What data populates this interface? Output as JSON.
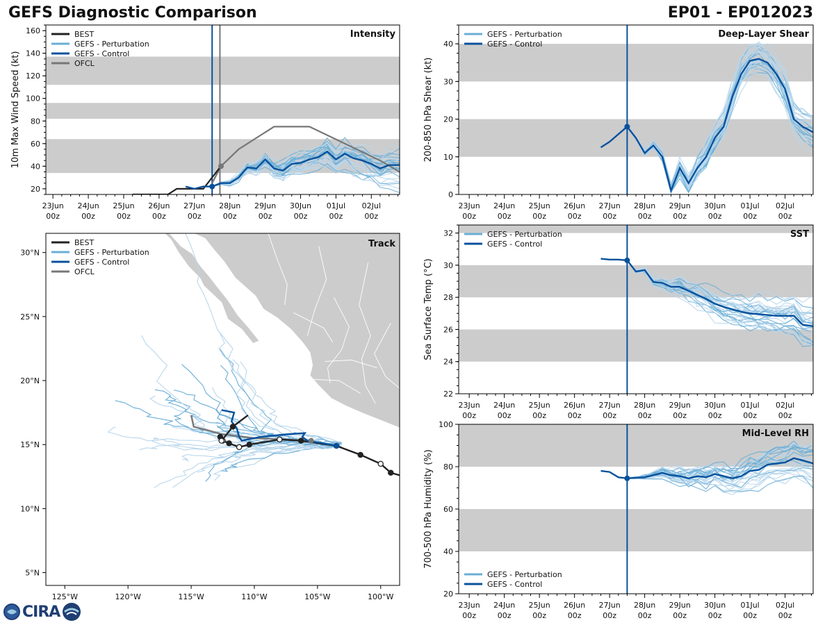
{
  "title": "GEFS Diagnostic Comparison",
  "storm_id": "EP01 - EP012023",
  "logo_text": "CIRA",
  "colors": {
    "best": "#222222",
    "perturbation": "#6aaed6",
    "control": "#08519c",
    "ofcl": "#777777",
    "band": "#cccccc",
    "land": "#cccccc",
    "land_border": "#ffffff"
  },
  "time_ticks": [
    "23Jun\n00z",
    "24Jun\n00z",
    "25Jun\n00z",
    "26Jun\n00z",
    "27Jun\n00z",
    "28Jun\n00z",
    "29Jun\n00z",
    "30Jun\n00z",
    "01Jul\n00z",
    "02Jul\n00z"
  ],
  "chart_data": [
    {
      "id": "intensity",
      "type": "line",
      "panel_label": "Intensity",
      "ylabel": "10m Max Wind Speed (kt)",
      "ylim": [
        15,
        165
      ],
      "yticks": [
        20,
        40,
        60,
        80,
        100,
        120,
        140,
        160
      ],
      "xlim_days": [
        -0.2,
        9.8
      ],
      "bands": [
        [
          34,
          64
        ],
        [
          82,
          96
        ],
        [
          112,
          137
        ]
      ],
      "init_day": 4.5,
      "ofcl_marker_day": 4.72,
      "legend": [
        "BEST",
        "GEFS - Perturbation",
        "GEFS - Control",
        "OFCL"
      ],
      "series": [
        {
          "name": "BEST",
          "x": [
            2.25,
            3.25,
            3.5,
            4.0,
            4.25,
            4.5,
            4.75
          ],
          "y": [
            15,
            15,
            20,
            20,
            20,
            30,
            40
          ]
        },
        {
          "name": "GEFS - Control",
          "x": [
            3.75,
            4.0,
            4.25,
            4.5,
            4.75,
            5.0,
            5.25,
            5.5,
            5.75,
            6.0,
            6.25,
            6.5,
            6.75,
            7.0,
            7.25,
            7.5,
            7.75,
            8.0,
            8.25,
            8.5,
            8.75,
            9.0,
            9.25,
            9.5,
            9.8
          ],
          "y": [
            22,
            20,
            22,
            22,
            25,
            25,
            30,
            39,
            38,
            46,
            38,
            36,
            42,
            43,
            46,
            48,
            53,
            46,
            51,
            47,
            45,
            42,
            38,
            41,
            41
          ]
        },
        {
          "name": "OFCL",
          "x": [
            4.5,
            4.75,
            5.25,
            6.25,
            7.25,
            8.25,
            9.25,
            9.8
          ],
          "y": [
            25,
            40,
            55,
            75,
            75,
            60,
            45,
            35
          ]
        }
      ]
    },
    {
      "id": "shear",
      "type": "line",
      "panel_label": "Deep-Layer Shear",
      "ylabel": "200-850 hPa Shear (kt)",
      "ylim": [
        0,
        45
      ],
      "yticks": [
        0,
        10,
        20,
        30,
        40
      ],
      "xlim_days": [
        -0.3,
        9.8
      ],
      "bands": [
        [
          10,
          20
        ],
        [
          30,
          40
        ]
      ],
      "init_day": 4.5,
      "legend": [
        "GEFS - Perturbation",
        "GEFS - Control"
      ],
      "series": [
        {
          "name": "GEFS - Control",
          "x": [
            3.75,
            4.0,
            4.25,
            4.5,
            4.75,
            5.0,
            5.25,
            5.5,
            5.75,
            6.0,
            6.25,
            6.5,
            6.75,
            7.0,
            7.25,
            7.5,
            7.75,
            8.0,
            8.25,
            8.5,
            8.75,
            9.0,
            9.25,
            9.5,
            9.8
          ],
          "y": [
            12.5,
            14,
            16,
            18,
            15,
            11,
            13,
            10,
            1,
            7,
            3,
            7,
            10,
            15,
            18,
            26,
            32,
            35.5,
            36,
            35,
            32,
            28,
            20,
            18,
            16.5
          ]
        }
      ]
    },
    {
      "id": "sst",
      "type": "line",
      "panel_label": "SST",
      "ylabel": "Sea Surface Temp (°C)",
      "ylim": [
        22,
        32.5
      ],
      "yticks": [
        22,
        24,
        26,
        28,
        30,
        32
      ],
      "xlim_days": [
        -0.3,
        9.8
      ],
      "bands": [
        [
          24,
          26
        ],
        [
          28,
          30
        ],
        [
          32,
          32.5
        ]
      ],
      "init_day": 4.5,
      "legend": [
        "GEFS - Perturbation",
        "GEFS - Control"
      ],
      "series": [
        {
          "name": "GEFS - Control",
          "x": [
            3.75,
            4.0,
            4.25,
            4.5,
            4.75,
            5.0,
            5.25,
            5.5,
            5.75,
            6.0,
            6.25,
            6.5,
            6.75,
            7.0,
            7.25,
            7.5,
            7.75,
            8.0,
            8.25,
            8.5,
            8.75,
            9.0,
            9.25,
            9.5,
            9.8
          ],
          "y": [
            30.4,
            30.35,
            30.35,
            30.3,
            29.6,
            29.7,
            28.95,
            28.9,
            28.65,
            28.65,
            28.4,
            28.15,
            27.9,
            27.6,
            27.4,
            27.25,
            27.1,
            27.0,
            26.95,
            26.9,
            26.85,
            26.85,
            26.85,
            26.3,
            26.2
          ]
        }
      ]
    },
    {
      "id": "rh",
      "type": "line",
      "panel_label": "Mid-Level RH",
      "ylabel": "700-500 hPa Humidity (%)",
      "ylim": [
        20,
        100
      ],
      "yticks": [
        20,
        40,
        60,
        80,
        100
      ],
      "xlim_days": [
        -0.3,
        9.8
      ],
      "bands": [
        [
          40,
          60
        ],
        [
          80,
          100
        ]
      ],
      "init_day": 4.5,
      "legend": [
        "GEFS - Perturbation",
        "GEFS - Control"
      ],
      "series": [
        {
          "name": "GEFS - Control",
          "x": [
            3.75,
            4.0,
            4.25,
            4.5,
            4.75,
            5.0,
            5.25,
            5.5,
            5.75,
            6.0,
            6.25,
            6.5,
            6.75,
            7.0,
            7.25,
            7.5,
            7.75,
            8.0,
            8.25,
            8.5,
            8.75,
            9.0,
            9.25,
            9.5,
            9.8
          ],
          "y": [
            78,
            77.5,
            75,
            74.5,
            74.8,
            75,
            76,
            77,
            76,
            75.5,
            74.5,
            75.5,
            75,
            76.5,
            75.5,
            74.5,
            75.5,
            78,
            78.5,
            81,
            81.5,
            82,
            84,
            83,
            81.5
          ]
        }
      ]
    },
    {
      "id": "track",
      "type": "scatter",
      "panel_label": "Track",
      "xlim": [
        -126.5,
        -98.5
      ],
      "ylim": [
        4,
        31.5
      ],
      "xticks": [
        "125°W",
        "120°W",
        "115°W",
        "110°W",
        "105°W",
        "100°W"
      ],
      "xtick_values": [
        -125,
        -120,
        -115,
        -110,
        -105,
        -100
      ],
      "yticks": [
        "5°N",
        "10°N",
        "15°N",
        "20°N",
        "25°N",
        "30°N"
      ],
      "ytick_values": [
        5,
        10,
        15,
        20,
        25,
        30
      ],
      "legend": [
        "BEST",
        "GEFS - Perturbation",
        "GEFS - Control",
        "OFCL"
      ],
      "series": [
        {
          "name": "BEST",
          "lon": [
            -98.5,
            -99.2,
            -100.0,
            -101.6,
            -103.5,
            -106.3,
            -108.0,
            -110.4,
            -111.2,
            -112.0,
            -112.5,
            -112.7,
            -112.6,
            -111.7,
            -110.5
          ],
          "lat": [
            12.6,
            12.8,
            13.5,
            14.2,
            14.9,
            15.3,
            15.4,
            15.0,
            14.8,
            15.1,
            15.3,
            15.6,
            15.3,
            16.4,
            17.3
          ]
        },
        {
          "name": "GEFS - Control",
          "lon": [
            -103.5,
            -104.5,
            -105.8,
            -106.2,
            -106.0,
            -107.5,
            -109.5,
            -110.5,
            -111.0,
            -111.2,
            -111.4,
            -111.8,
            -111.6,
            -112.6
          ],
          "lat": [
            14.9,
            15.1,
            15.3,
            15.6,
            15.9,
            15.8,
            15.6,
            15.4,
            15.3,
            15.6,
            16.3,
            16.8,
            17.5,
            17.7
          ]
        },
        {
          "name": "OFCL",
          "lon": [
            -105.5,
            -107.5,
            -110.0,
            -112.5,
            -114.8,
            -115.0
          ],
          "lat": [
            15.3,
            15.4,
            15.5,
            15.8,
            16.4,
            17.3
          ]
        }
      ]
    }
  ]
}
